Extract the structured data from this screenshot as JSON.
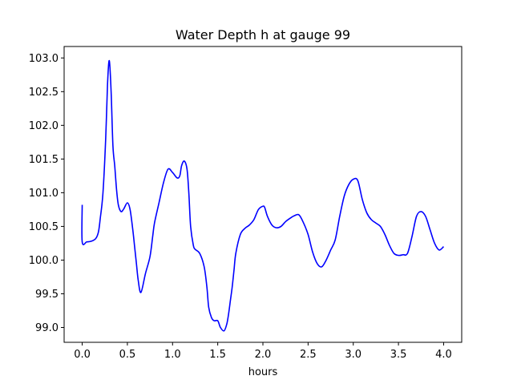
{
  "chart_data": {
    "type": "line",
    "title": "Water Depth h at gauge 99",
    "xlabel": "hours",
    "ylabel": "",
    "xlim": [
      -0.2,
      4.2
    ],
    "ylim": [
      98.78,
      103.17
    ],
    "x_ticks": [
      0.0,
      0.5,
      1.0,
      1.5,
      2.0,
      2.5,
      3.0,
      3.5,
      4.0
    ],
    "x_tick_labels": [
      "0.0",
      "0.5",
      "1.0",
      "1.5",
      "2.0",
      "2.5",
      "3.0",
      "3.5",
      "4.0"
    ],
    "y_ticks": [
      99.0,
      99.5,
      100.0,
      100.5,
      101.0,
      101.5,
      102.0,
      102.5,
      103.0
    ],
    "y_tick_labels": [
      "99.0",
      "99.5",
      "100.0",
      "100.5",
      "101.0",
      "101.5",
      "102.0",
      "102.5",
      "103.0"
    ],
    "grid": false,
    "legend": "none",
    "series": [
      {
        "color": "#0000ff",
        "x": [
          0.0,
          0.0,
          0.05,
          0.1,
          0.15,
          0.18,
          0.2,
          0.23,
          0.26,
          0.28,
          0.3,
          0.32,
          0.34,
          0.36,
          0.38,
          0.4,
          0.43,
          0.46,
          0.5,
          0.53,
          0.56,
          0.58,
          0.6,
          0.62,
          0.65,
          0.7,
          0.75,
          0.78,
          0.8,
          0.85,
          0.9,
          0.95,
          1.0,
          1.05,
          1.08,
          1.1,
          1.13,
          1.16,
          1.18,
          1.2,
          1.23,
          1.25,
          1.3,
          1.35,
          1.38,
          1.4,
          1.43,
          1.46,
          1.5,
          1.53,
          1.57,
          1.6,
          1.62,
          1.64,
          1.66,
          1.68,
          1.7,
          1.75,
          1.8,
          1.85,
          1.9,
          1.95,
          2.0,
          2.02,
          2.05,
          2.1,
          2.15,
          2.2,
          2.25,
          2.3,
          2.35,
          2.4,
          2.45,
          2.5,
          2.55,
          2.6,
          2.65,
          2.7,
          2.75,
          2.8,
          2.85,
          2.9,
          2.95,
          3.0,
          3.05,
          3.1,
          3.15,
          3.2,
          3.25,
          3.3,
          3.35,
          3.4,
          3.45,
          3.5,
          3.55,
          3.6,
          3.65,
          3.7,
          3.75,
          3.8,
          3.85,
          3.9,
          3.95,
          4.0
        ],
        "y": [
          100.82,
          100.27,
          100.27,
          100.28,
          100.32,
          100.42,
          100.62,
          101.0,
          101.8,
          102.6,
          102.96,
          102.5,
          101.7,
          101.4,
          101.05,
          100.82,
          100.72,
          100.76,
          100.85,
          100.75,
          100.45,
          100.2,
          99.95,
          99.7,
          99.52,
          99.8,
          100.05,
          100.35,
          100.55,
          100.85,
          101.15,
          101.35,
          101.3,
          101.22,
          101.25,
          101.4,
          101.47,
          101.35,
          101.0,
          100.5,
          100.22,
          100.16,
          100.1,
          99.9,
          99.6,
          99.3,
          99.15,
          99.1,
          99.1,
          99.0,
          98.95,
          99.05,
          99.2,
          99.4,
          99.6,
          99.85,
          100.1,
          100.38,
          100.47,
          100.52,
          100.6,
          100.75,
          100.8,
          100.78,
          100.65,
          100.52,
          100.48,
          100.5,
          100.57,
          100.62,
          100.66,
          100.67,
          100.55,
          100.38,
          100.12,
          99.95,
          99.9,
          100.0,
          100.15,
          100.3,
          100.65,
          100.95,
          101.12,
          101.2,
          101.18,
          100.9,
          100.7,
          100.6,
          100.55,
          100.5,
          100.38,
          100.22,
          100.1,
          100.07,
          100.08,
          100.1,
          100.35,
          100.65,
          100.72,
          100.65,
          100.45,
          100.25,
          100.15,
          100.2
        ]
      }
    ]
  }
}
